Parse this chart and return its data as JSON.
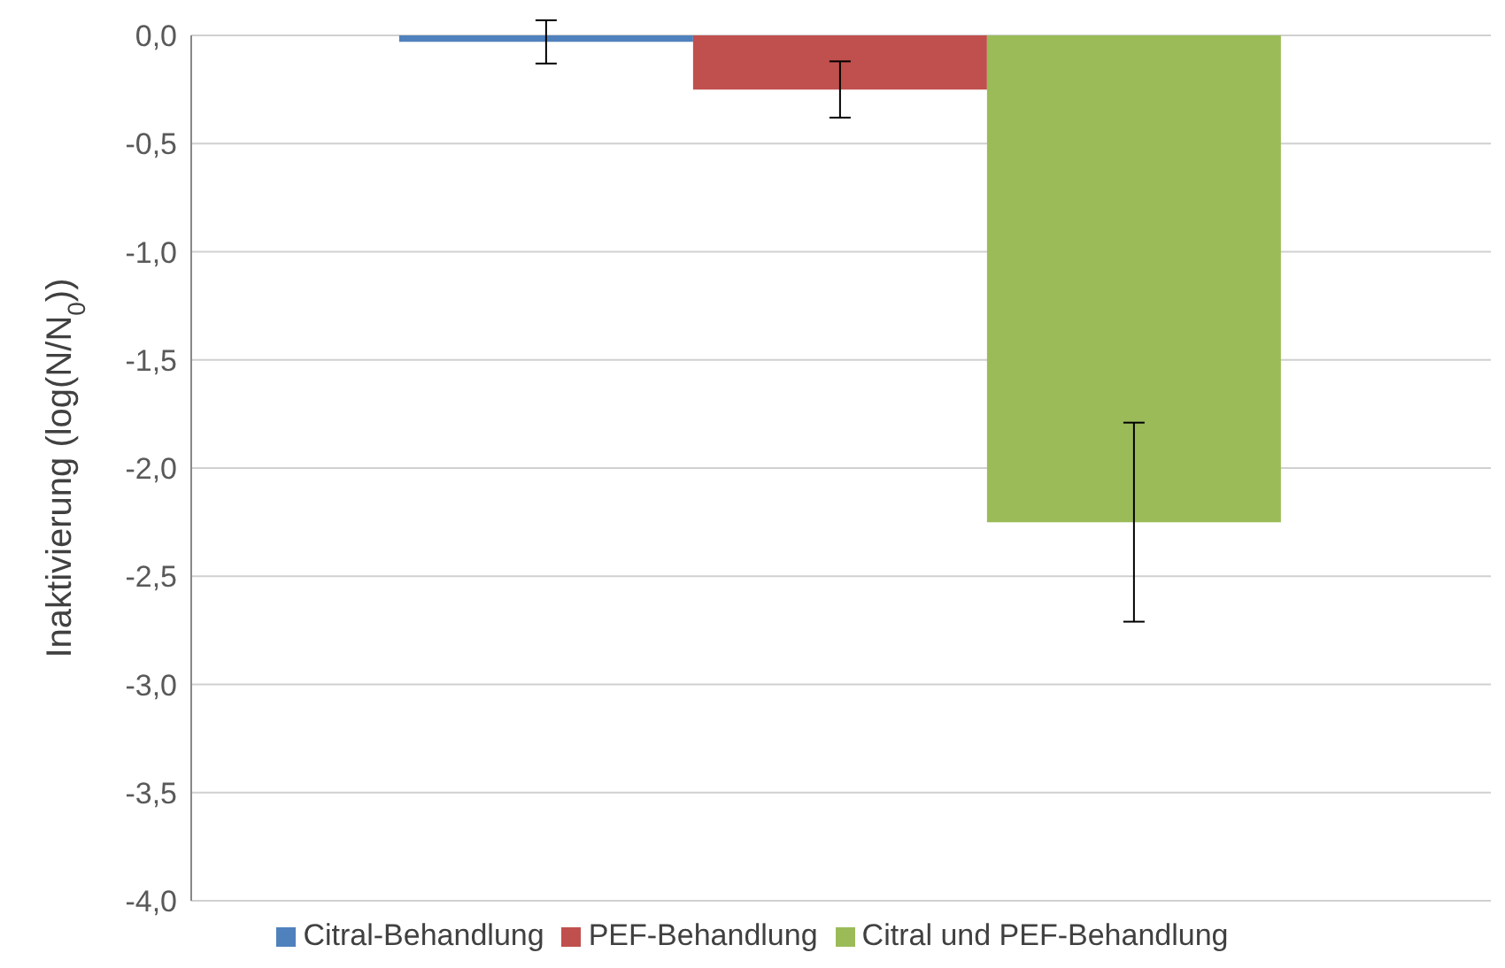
{
  "chart_data": {
    "type": "bar",
    "ylabel": "Inaktivierung (log(N/N$_{0}$))",
    "categories": [
      null
    ],
    "series": [
      {
        "name": "Citral-Behandlung",
        "color": "#4f81bd",
        "values": [
          -0.03
        ],
        "errors": [
          0.1
        ]
      },
      {
        "name": "PEF-Behandlung",
        "color": "#c0504d",
        "values": [
          -0.25
        ],
        "errors": [
          0.13
        ]
      },
      {
        "name": "Citral und PEF-Behandlung",
        "color": "#9bbb59",
        "values": [
          -2.25
        ],
        "errors": [
          0.46
        ]
      }
    ],
    "ylim": [
      -4,
      0
    ],
    "yticks": [
      {
        "value": 0,
        "label": "0,0"
      },
      {
        "value": -0.5,
        "label": "-0,5"
      },
      {
        "value": -1,
        "label": "-1,0"
      },
      {
        "value": -1.5,
        "label": "-1,5"
      },
      {
        "value": -2,
        "label": "-2,0"
      },
      {
        "value": -2.5,
        "label": "-2,5"
      },
      {
        "value": -3,
        "label": "-3,0"
      },
      {
        "value": -3.5,
        "label": "-3,5"
      },
      {
        "value": -4,
        "label": "-4,0"
      }
    ],
    "grid": "y",
    "legend": "bottom"
  }
}
